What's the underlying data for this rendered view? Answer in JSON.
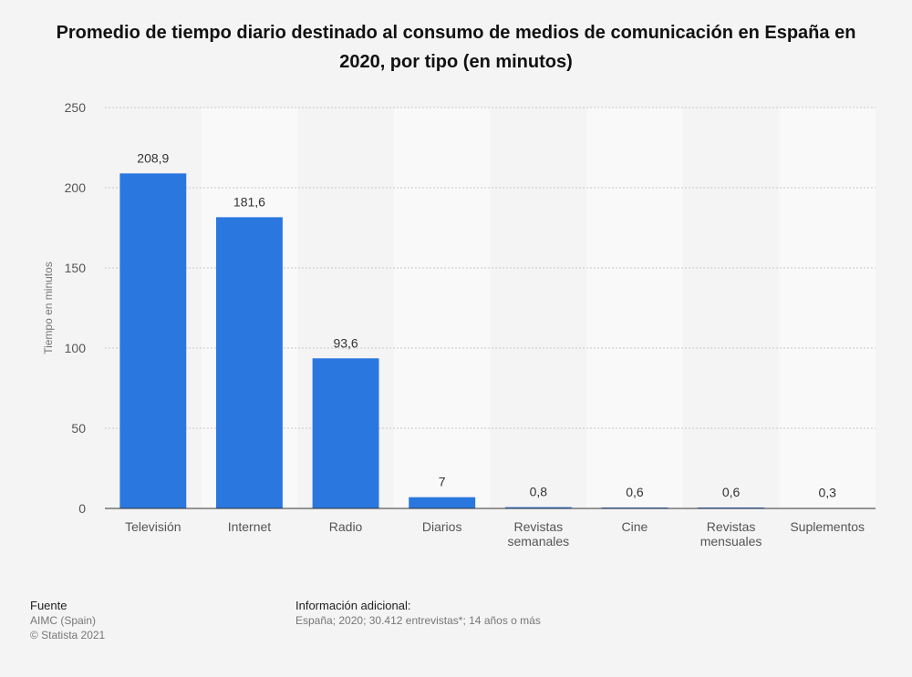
{
  "chart_data": {
    "type": "bar",
    "title": "Promedio de tiempo diario destinado al consumo de medios de comunicación en España en 2020, por tipo (en minutos)",
    "xlabel": "",
    "ylabel": "Tiempo en minutos",
    "ylim": [
      0,
      250
    ],
    "yticks": [
      0,
      50,
      100,
      150,
      200,
      250
    ],
    "categories": [
      [
        "Televisión"
      ],
      [
        "Internet"
      ],
      [
        "Radio"
      ],
      [
        "Diarios"
      ],
      [
        "Revistas",
        "semanales"
      ],
      [
        "Cine"
      ],
      [
        "Revistas",
        "mensuales"
      ],
      [
        "Suplementos"
      ]
    ],
    "values": [
      208.9,
      181.6,
      93.6,
      7,
      0.8,
      0.6,
      0.6,
      0.3
    ],
    "value_labels": [
      "208,9",
      "181,6",
      "93,6",
      "7",
      "0,8",
      "0,6",
      "0,6",
      "0,3"
    ],
    "bar_color": "#2a77e0",
    "grid": true
  },
  "footer": {
    "source_heading": "Fuente",
    "source_text": "AIMC (Spain)",
    "copyright": "© Statista 2021",
    "info_heading": "Información adicional:",
    "info_text": "España; 2020; 30.412 entrevistas*; 14 años o más"
  }
}
